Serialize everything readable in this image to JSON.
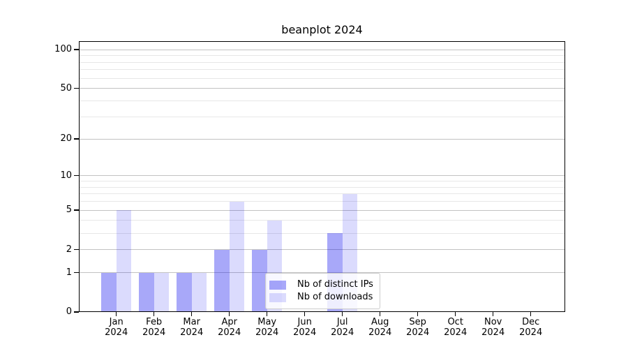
{
  "title": "beanplot 2024",
  "colors": {
    "background": "#ffffff",
    "bar_distinct_ips_hex": "#aaaaf8",
    "bar_downloads_hex": "#dcdcfa",
    "bar_distinct_ips_rgba": "rgba(0,0,238,0.34)",
    "bar_downloads_rgba": "rgba(0,0,238,0.14)",
    "grid_major": "#c2c2c2",
    "grid_minor": "#e7e7e7",
    "spine": "#000000",
    "legend_border": "#cccccc"
  },
  "chart_data": {
    "type": "bar",
    "title": "beanplot 2024",
    "categories": [
      "Jan 2024",
      "Feb 2024",
      "Mar 2024",
      "Apr 2024",
      "May 2024",
      "Jun 2024",
      "Jul 2024",
      "Aug 2024",
      "Sep 2024",
      "Oct 2024",
      "Nov 2024",
      "Dec 2024"
    ],
    "x_tick_labels": [
      [
        "Jan",
        "2024"
      ],
      [
        "Feb",
        "2024"
      ],
      [
        "Mar",
        "2024"
      ],
      [
        "Apr",
        "2024"
      ],
      [
        "May",
        "2024"
      ],
      [
        "Jun",
        "2024"
      ],
      [
        "Jul",
        "2024"
      ],
      [
        "Aug",
        "2024"
      ],
      [
        "Sep",
        "2024"
      ],
      [
        "Oct",
        "2024"
      ],
      [
        "Nov",
        "2024"
      ],
      [
        "Dec",
        "2024"
      ]
    ],
    "series": [
      {
        "name": "Nb of distinct IPs",
        "values": [
          1,
          1,
          1,
          2,
          2,
          0,
          3,
          0,
          0,
          0,
          0,
          0
        ]
      },
      {
        "name": "Nb of downloads",
        "values": [
          5,
          1,
          1,
          6,
          4,
          0,
          7,
          0,
          0,
          0,
          0,
          0
        ]
      }
    ],
    "y_axis": {
      "scale": "log10(1+value)",
      "tick_labels": [
        "0",
        "1",
        "2",
        "5",
        "10",
        "20",
        "50",
        "100"
      ],
      "ticks_major": [
        0,
        1,
        2,
        5,
        10,
        20,
        50,
        100
      ],
      "ticks_minor": [
        3,
        4,
        6,
        7,
        8,
        9,
        30,
        40,
        60,
        70,
        80,
        90
      ],
      "ylim": [
        0,
        116
      ]
    },
    "grid": true,
    "legend": {
      "position": "lower center",
      "entries": [
        "Nb of distinct IPs",
        "Nb of downloads"
      ]
    }
  }
}
